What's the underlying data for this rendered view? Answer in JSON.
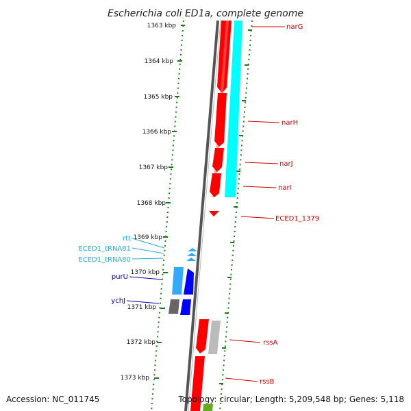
{
  "title": "Escherichia coli ED1a, complete genome",
  "accession": "Accession: NC_011745",
  "topology": "Topology: circular; Length: 5,209,548 bp; Genes: 5,118",
  "colors": {
    "red_gene": "#ff0000",
    "cyan_gene": "#00ffff",
    "blue_gene": "#0000ff",
    "lightblue_gene": "#33aaff",
    "gray_gene": "#888888",
    "ruler": "#1a7a1a",
    "label_red": "#cc0000",
    "label_navy": "#0000aa",
    "label_cyan": "#22aadd"
  },
  "ruler_labels": [
    "1363 kbp",
    "1364 kbp",
    "1365 kbp",
    "1366 kbp",
    "1367 kbp",
    "1368 kbp",
    "1369 kbp",
    "1370 kbp",
    "1371 kbp",
    "1372 kbp",
    "1373 kbp"
  ],
  "gene_labels": [
    {
      "text": "narG",
      "color": "label_red"
    },
    {
      "text": "narH",
      "color": "label_red"
    },
    {
      "text": "narJ",
      "color": "label_red"
    },
    {
      "text": "narI",
      "color": "label_red"
    },
    {
      "text": "ECED1_1379",
      "color": "label_red"
    },
    {
      "text": "rtt",
      "color": "label_cyan"
    },
    {
      "text": "ECED1_tRNA81",
      "color": "label_cyan"
    },
    {
      "text": "ECED1_tRNA80",
      "color": "label_cyan"
    },
    {
      "text": "purU",
      "color": "label_navy"
    },
    {
      "text": "ychJ",
      "color": "label_navy"
    },
    {
      "text": "rssA",
      "color": "label_red"
    },
    {
      "text": "rssB",
      "color": "label_red"
    }
  ]
}
